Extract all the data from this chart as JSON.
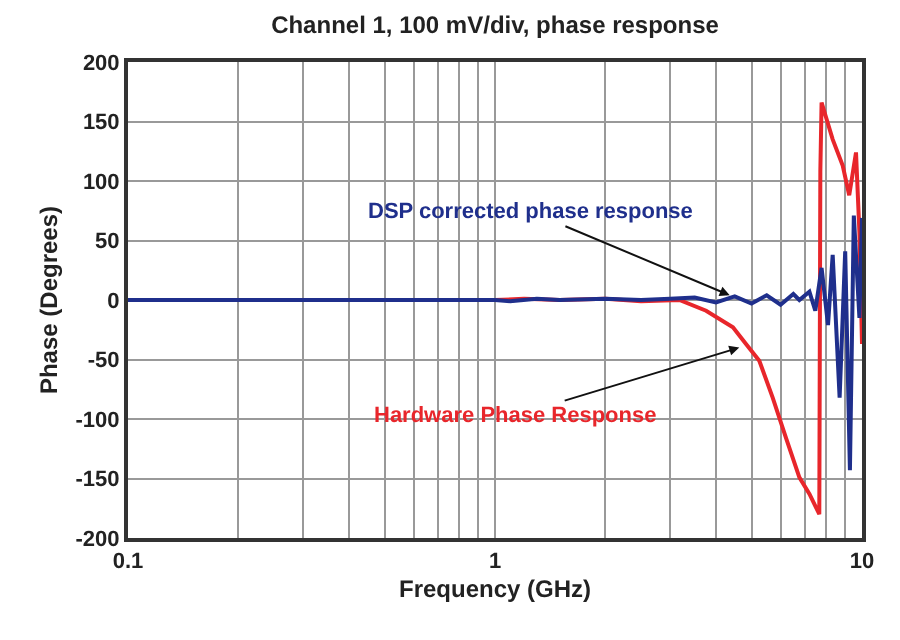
{
  "chart_data": {
    "type": "line",
    "title": "Channel 1, 100 mV/div, phase response",
    "xlabel": "Frequency (GHz)",
    "ylabel": "Phase (Degrees)",
    "log": "x",
    "grid": true,
    "marker": "none",
    "line_style": "solid",
    "xlim": [
      0.1,
      10
    ],
    "xticks": [
      0.1,
      {
        "value": 0.2,
        "label": null
      },
      {
        "value": 0.3,
        "label": null
      },
      {
        "value": 0.4,
        "label": null
      },
      {
        "value": 0.5,
        "label": null
      },
      {
        "value": 0.6,
        "label": null
      },
      {
        "value": 0.7,
        "label": null
      },
      {
        "value": 0.8,
        "label": null
      },
      {
        "value": 0.9,
        "label": null
      },
      1,
      {
        "value": 2,
        "label": null
      },
      {
        "value": 3,
        "label": null
      },
      {
        "value": 4,
        "label": null
      },
      {
        "value": 5,
        "label": null
      },
      {
        "value": 6,
        "label": null
      },
      {
        "value": 7,
        "label": null
      },
      {
        "value": 8,
        "label": null
      },
      {
        "value": 9,
        "label": null
      },
      10
    ],
    "ylim": [
      -200,
      200
    ],
    "yticks": [
      -200,
      -150,
      -100,
      -50,
      0,
      50,
      100,
      150,
      200
    ],
    "series": [
      {
        "color": "#e8262b",
        "x": [
          0.1,
          1,
          1.2,
          1.5,
          2,
          2.5,
          3.18,
          3.76,
          4.45,
          4.83,
          5.25,
          5.71,
          6.21,
          6.75,
          7.19,
          7.65,
          7.7,
          7.76,
          8.32,
          8.86,
          9.23,
          9.63,
          9.84,
          10
        ],
        "values": [
          0,
          0,
          1,
          0,
          1,
          -1,
          0,
          -9,
          -23,
          -37,
          -51,
          -82,
          -116,
          -149,
          -163,
          -180,
          108,
          166,
          135,
          113,
          88,
          124,
          57,
          -37
        ]
      },
      {
        "color": "#1f2f8c",
        "x": [
          0.1,
          1,
          1.1,
          1.3,
          1.5,
          2,
          2.5,
          3,
          3.5,
          4,
          4.5,
          5,
          5.5,
          6,
          6.5,
          6.75,
          7.19,
          7.46,
          7.76,
          8.08,
          8.32,
          8.69,
          9.0,
          9.27,
          9.5,
          9.84,
          10
        ],
        "values": [
          0,
          0,
          -1,
          1,
          0,
          1,
          0,
          1,
          2,
          -2,
          3,
          -3,
          4,
          -4,
          5,
          0,
          7,
          -9,
          27,
          -21,
          38,
          -82,
          41,
          -143,
          71,
          -15,
          69
        ]
      }
    ],
    "annotations": [
      {
        "text": "DSP corrected phase response",
        "x": 4.36,
        "y": 4
      },
      {
        "text": "Hardware Phase Response",
        "x": 4.63,
        "y": -40
      }
    ]
  }
}
